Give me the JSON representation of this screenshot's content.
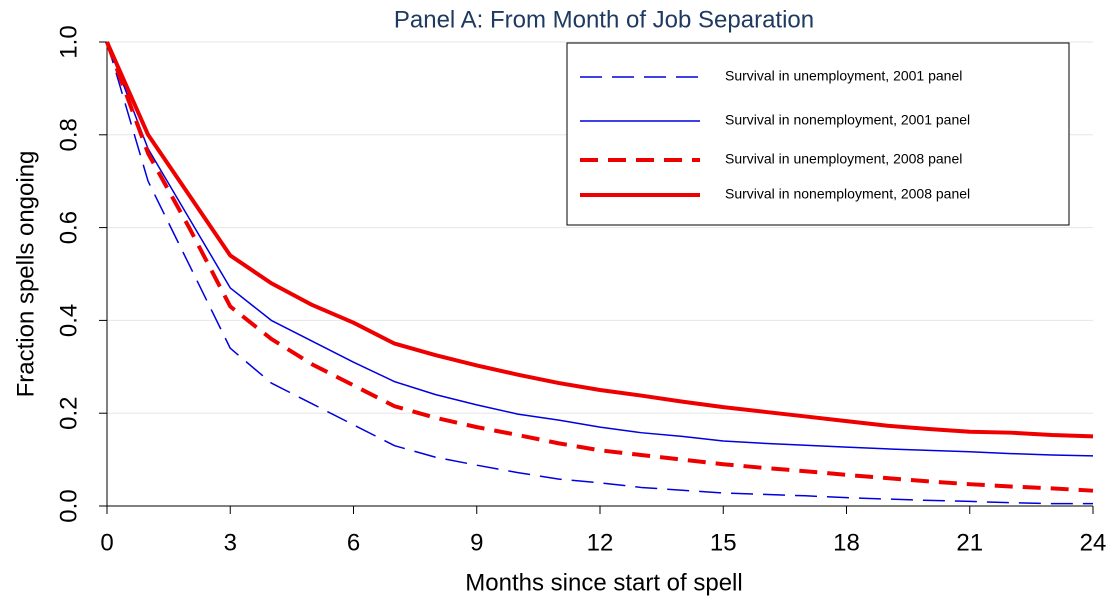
{
  "chart_data": {
    "type": "line",
    "title": "Panel A:  From Month of Job Separation",
    "x_label": "Months since start of spell",
    "y_label": "Fraction spells ongoing",
    "x": [
      0,
      1,
      2,
      3,
      4,
      5,
      6,
      7,
      8,
      9,
      10,
      11,
      12,
      13,
      14,
      15,
      16,
      17,
      18,
      19,
      20,
      21,
      22,
      23,
      24
    ],
    "xlim": [
      0,
      24
    ],
    "xticks": [
      0,
      3,
      6,
      9,
      12,
      15,
      18,
      21,
      24
    ],
    "ylim": [
      0,
      1
    ],
    "yticks": [
      {
        "value": 0,
        "label": "0.0"
      },
      0.2,
      0.4,
      0.6,
      0.8,
      {
        "value": 1,
        "label": "1.0"
      }
    ],
    "grid": true,
    "legend_position": "top-right",
    "series": [
      {
        "name": "Survival in unemployment, 2001 panel",
        "color": "#0000e0",
        "dash": true,
        "width": 1.5,
        "values": [
          1.0,
          0.7,
          0.52,
          0.34,
          0.265,
          0.22,
          0.175,
          0.13,
          0.105,
          0.088,
          0.072,
          0.058,
          0.05,
          0.04,
          0.034,
          0.028,
          0.025,
          0.022,
          0.018,
          0.015,
          0.012,
          0.01,
          0.007,
          0.005,
          0.005
        ]
      },
      {
        "name": "Survival in nonemployment, 2001 panel",
        "color": "#0000e0",
        "dash": false,
        "width": 1.5,
        "values": [
          1.0,
          0.77,
          0.62,
          0.47,
          0.4,
          0.355,
          0.31,
          0.268,
          0.24,
          0.218,
          0.198,
          0.185,
          0.17,
          0.158,
          0.15,
          0.14,
          0.135,
          0.131,
          0.127,
          0.123,
          0.12,
          0.117,
          0.113,
          0.11,
          0.108
        ]
      },
      {
        "name": "Survival in unemployment, 2008 panel",
        "color": "#ee0000",
        "dash": true,
        "width": 4,
        "values": [
          1.0,
          0.76,
          0.6,
          0.43,
          0.36,
          0.305,
          0.26,
          0.215,
          0.19,
          0.17,
          0.153,
          0.135,
          0.12,
          0.11,
          0.1,
          0.09,
          0.082,
          0.075,
          0.067,
          0.06,
          0.053,
          0.047,
          0.042,
          0.038,
          0.033
        ]
      },
      {
        "name": "Survival in nonemployment, 2008 panel",
        "color": "#ee0000",
        "dash": false,
        "width": 4,
        "values": [
          1.0,
          0.8,
          0.67,
          0.54,
          0.48,
          0.433,
          0.395,
          0.35,
          0.325,
          0.303,
          0.283,
          0.265,
          0.25,
          0.238,
          0.225,
          0.213,
          0.203,
          0.193,
          0.183,
          0.173,
          0.166,
          0.16,
          0.158,
          0.153,
          0.15
        ]
      }
    ]
  }
}
